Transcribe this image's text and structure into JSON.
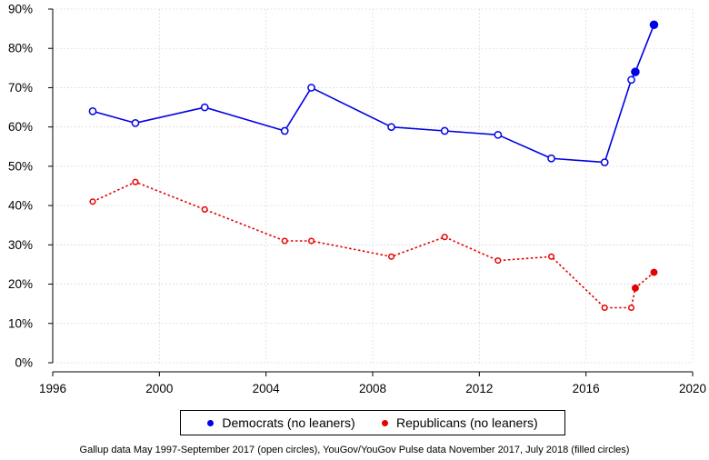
{
  "chart_data": {
    "type": "line",
    "x_ticks": [
      1996,
      2000,
      2004,
      2008,
      2012,
      2016,
      2020
    ],
    "y_ticks": [
      0,
      10,
      20,
      30,
      40,
      50,
      60,
      70,
      80,
      90
    ],
    "y_tick_labels": [
      "0%",
      "10%",
      "20%",
      "30%",
      "40%",
      "50%",
      "60%",
      "70%",
      "80%",
      "90%"
    ],
    "xlim": [
      1996,
      2020
    ],
    "ylim": [
      0,
      90
    ],
    "grid": true,
    "legend_position": "bottom",
    "series": [
      {
        "name": "Democrats (no leaners)",
        "color": "#0000e6",
        "line_style": "solid",
        "points": [
          {
            "x": 1997.5,
            "y": 64,
            "filled": false
          },
          {
            "x": 1999.1,
            "y": 61,
            "filled": false
          },
          {
            "x": 2001.7,
            "y": 65,
            "filled": false
          },
          {
            "x": 2004.7,
            "y": 59,
            "filled": false
          },
          {
            "x": 2005.7,
            "y": 70,
            "filled": false
          },
          {
            "x": 2008.7,
            "y": 60,
            "filled": false
          },
          {
            "x": 2010.7,
            "y": 59,
            "filled": false
          },
          {
            "x": 2012.7,
            "y": 58,
            "filled": false
          },
          {
            "x": 2014.7,
            "y": 52,
            "filled": false
          },
          {
            "x": 2016.7,
            "y": 51,
            "filled": false
          },
          {
            "x": 2017.7,
            "y": 72,
            "filled": false
          },
          {
            "x": 2017.85,
            "y": 74,
            "filled": true
          },
          {
            "x": 2018.55,
            "y": 86,
            "filled": true
          }
        ]
      },
      {
        "name": "Republicans (no leaners)",
        "color": "#e60000",
        "line_style": "dotted",
        "points": [
          {
            "x": 1997.5,
            "y": 41,
            "filled": false
          },
          {
            "x": 1999.1,
            "y": 46,
            "filled": false
          },
          {
            "x": 2001.7,
            "y": 39,
            "filled": false
          },
          {
            "x": 2004.7,
            "y": 31,
            "filled": false
          },
          {
            "x": 2005.7,
            "y": 31,
            "filled": false
          },
          {
            "x": 2008.7,
            "y": 27,
            "filled": false
          },
          {
            "x": 2010.7,
            "y": 32,
            "filled": false
          },
          {
            "x": 2012.7,
            "y": 26,
            "filled": false
          },
          {
            "x": 2014.7,
            "y": 27,
            "filled": false
          },
          {
            "x": 2016.7,
            "y": 14,
            "filled": false
          },
          {
            "x": 2017.7,
            "y": 14,
            "filled": false
          },
          {
            "x": 2017.85,
            "y": 19,
            "filled": true
          },
          {
            "x": 2018.55,
            "y": 23,
            "filled": true
          }
        ]
      }
    ]
  },
  "legend": {
    "democrats_label": "Democrats (no leaners)",
    "republicans_label": "Republicans (no leaners)"
  },
  "footnote": "Gallup data May 1997-September 2017 (open circles), YouGov/YouGov Pulse data November 2017, July 2018 (filled circles)"
}
